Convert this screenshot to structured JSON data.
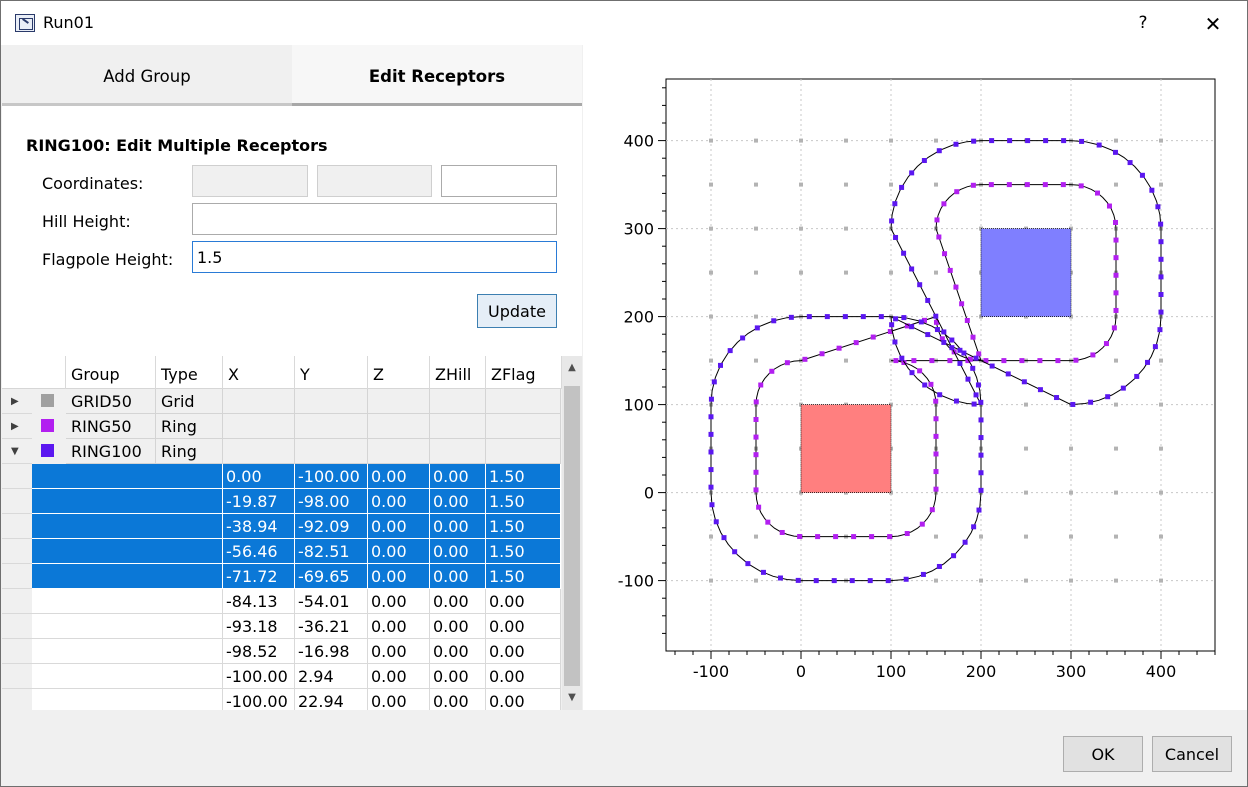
{
  "window": {
    "title": "Run01",
    "help": "?",
    "close": "✕"
  },
  "tabs": [
    {
      "label": "Add Group"
    },
    {
      "label": "Edit Receptors"
    }
  ],
  "form": {
    "title": "RING100: Edit Multiple Receptors",
    "coordinates_label": "Coordinates:",
    "hill_label": "Hill Height:",
    "flagpole_label": "Flagpole Height:",
    "flagpole_value": "1.5",
    "update_label": "Update"
  },
  "table": {
    "headers": [
      "Group",
      "Type",
      "X",
      "Y",
      "Z",
      "ZHill",
      "ZFlag"
    ],
    "groups": [
      {
        "name": "GRID50",
        "type": "Grid",
        "color": "#a0a0a0",
        "expander": "▶"
      },
      {
        "name": "RING50",
        "type": "Ring",
        "color": "#b21ff0",
        "expander": "▶"
      },
      {
        "name": "RING100",
        "type": "Ring",
        "color": "#5b17f0",
        "expander": "▼"
      }
    ],
    "rows": [
      {
        "x": "0.00",
        "y": "-100.00",
        "z": "0.00",
        "zhill": "0.00",
        "zflag": "1.50",
        "selected": true
      },
      {
        "x": "-19.87",
        "y": "-98.00",
        "z": "0.00",
        "zhill": "0.00",
        "zflag": "1.50",
        "selected": true
      },
      {
        "x": "-38.94",
        "y": "-92.09",
        "z": "0.00",
        "zhill": "0.00",
        "zflag": "1.50",
        "selected": true
      },
      {
        "x": "-56.46",
        "y": "-82.51",
        "z": "0.00",
        "zhill": "0.00",
        "zflag": "1.50",
        "selected": true
      },
      {
        "x": "-71.72",
        "y": "-69.65",
        "z": "0.00",
        "zhill": "0.00",
        "zflag": "1.50",
        "selected": true
      },
      {
        "x": "-84.13",
        "y": "-54.01",
        "z": "0.00",
        "zhill": "0.00",
        "zflag": "0.00",
        "selected": false
      },
      {
        "x": "-93.18",
        "y": "-36.21",
        "z": "0.00",
        "zhill": "0.00",
        "zflag": "0.00",
        "selected": false
      },
      {
        "x": "-98.52",
        "y": "-16.98",
        "z": "0.00",
        "zhill": "0.00",
        "zflag": "0.00",
        "selected": false
      },
      {
        "x": "-100.00",
        "y": "2.94",
        "z": "0.00",
        "zhill": "0.00",
        "zflag": "0.00",
        "selected": false
      },
      {
        "x": "-100.00",
        "y": "22.94",
        "z": "0.00",
        "zhill": "0.00",
        "zflag": "0.00",
        "selected": false
      }
    ]
  },
  "plot": {
    "xticks": [
      "-100",
      "0",
      "100",
      "200",
      "300",
      "400"
    ],
    "yticks": [
      "400",
      "300",
      "200",
      "100",
      "0",
      "-100"
    ],
    "xlim": [
      -150,
      460
    ],
    "ylim": [
      -180,
      470
    ],
    "sources": [
      {
        "x0": 0,
        "y0": 0,
        "x1": 100,
        "y1": 100,
        "color": "#ff7f7f"
      },
      {
        "x0": 200,
        "y0": 200,
        "x1": 300,
        "y1": 300,
        "color": "#7f7fff"
      }
    ],
    "ring50_color": "#b21ff0",
    "ring100_color": "#5b17f0",
    "grid_point_color": "#b3b3b3"
  },
  "footer": {
    "ok_label": "OK",
    "cancel_label": "Cancel"
  }
}
